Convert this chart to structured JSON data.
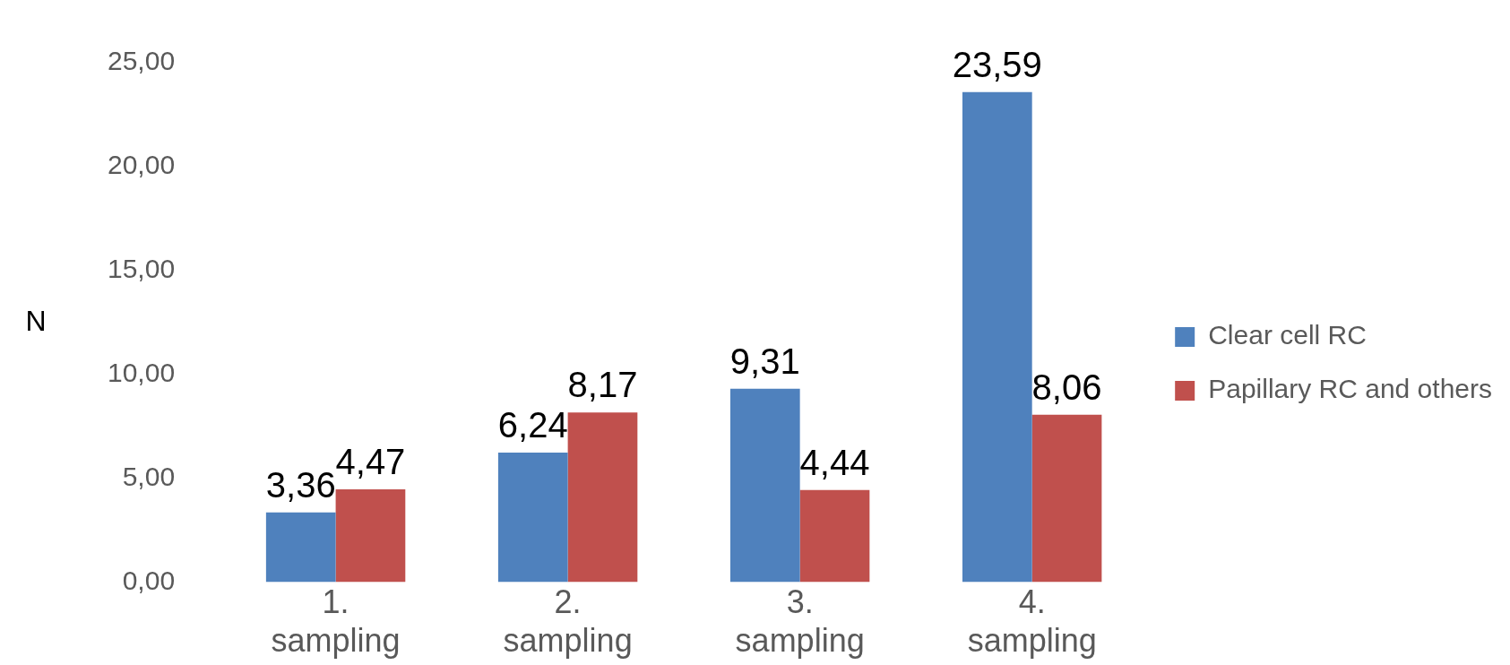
{
  "chart_data": {
    "type": "bar",
    "ylabel": "N",
    "categories": [
      "1. sampling",
      "2. sampling",
      "3. sampling",
      "4. sampling"
    ],
    "series": [
      {
        "name": "Clear cell RC",
        "color": "#4f81bd",
        "values": [
          3.36,
          6.24,
          9.31,
          23.59
        ],
        "value_labels": [
          "3,36",
          "6,24",
          "9,31",
          "23,59"
        ]
      },
      {
        "name": "Papillary RC and others",
        "color": "#c0504d",
        "values": [
          4.47,
          8.17,
          4.44,
          8.06
        ],
        "value_labels": [
          "4,47",
          "8,17",
          "4,44",
          "8,06"
        ]
      }
    ],
    "ylim": [
      0,
      25
    ],
    "yticks": [
      {
        "value": 0,
        "label": "0,00"
      },
      {
        "value": 5,
        "label": "5,00"
      },
      {
        "value": 10,
        "label": "10,00"
      },
      {
        "value": 15,
        "label": "15,00"
      },
      {
        "value": 20,
        "label": "20,00"
      },
      {
        "value": 25,
        "label": "25,00"
      }
    ],
    "legend": "right",
    "grid": false
  }
}
